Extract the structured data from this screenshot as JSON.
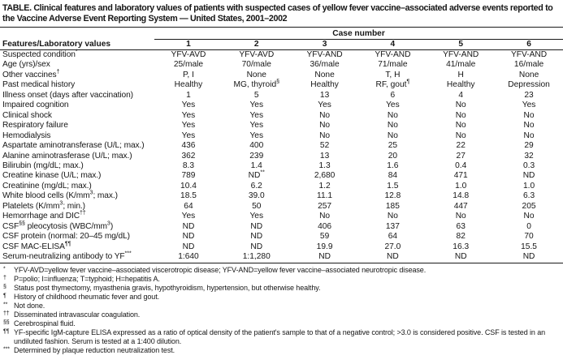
{
  "title": "TABLE. Clinical features and laboratory values of patients with suspected cases of yellow fever vaccine–associated adverse events reported to the Vaccine Adverse Event Reporting System — United States, 2001–2002",
  "table": {
    "case_number_header": "Case number",
    "features_header": "Features/Laboratory values",
    "case_columns": [
      "1",
      "2",
      "3",
      "4",
      "5",
      "6"
    ],
    "rows": [
      {
        "label": [
          {
            "t": "Suspected condition"
          },
          {
            "t": "*",
            "sup": true
          }
        ],
        "cells": [
          "YFV-AVD",
          "YFV-AVD",
          "YFV-AND",
          "YFV-AND",
          "YFV-AND",
          "YFV-AND"
        ]
      },
      {
        "label": "Age (yrs)/sex",
        "cells": [
          "25/male",
          "70/male",
          "36/male",
          "71/male",
          "41/male",
          "16/male"
        ]
      },
      {
        "label": [
          {
            "t": "Other vaccines"
          },
          {
            "t": "†",
            "sup": true
          }
        ],
        "cells": [
          "P, I",
          "None",
          "None",
          "T, H",
          "H",
          "None"
        ]
      },
      {
        "label": "Past medical history",
        "cells": [
          "Healthy",
          [
            {
              "t": "MG, thyroid"
            },
            {
              "t": "§",
              "sup": true
            }
          ],
          "Healthy",
          [
            {
              "t": "RF, gout"
            },
            {
              "t": "¶",
              "sup": true
            }
          ],
          "Healthy",
          "Depression"
        ]
      },
      {
        "label": "Illness onset (days after vaccination)",
        "cells": [
          "1",
          "5",
          "13",
          "6",
          "4",
          "23"
        ]
      },
      {
        "label": "Impaired cognition",
        "cells": [
          "Yes",
          "Yes",
          "Yes",
          "Yes",
          "No",
          "Yes"
        ]
      },
      {
        "label": "Clinical shock",
        "cells": [
          "Yes",
          "Yes",
          "No",
          "No",
          "No",
          "No"
        ]
      },
      {
        "label": "Respiratory failure",
        "cells": [
          "Yes",
          "Yes",
          "No",
          "No",
          "No",
          "No"
        ]
      },
      {
        "label": "Hemodialysis",
        "cells": [
          "Yes",
          "Yes",
          "No",
          "No",
          "No",
          "No"
        ]
      },
      {
        "label": "Aspartate aminotransferase  (U/L; max.)",
        "cells": [
          "436",
          "400",
          "52",
          "25",
          "22",
          "29"
        ]
      },
      {
        "label": "Alanine aminotrasferase  (U/L; max.)",
        "cells": [
          "362",
          "239",
          "13",
          "20",
          "27",
          "32"
        ]
      },
      {
        "label": "Bilirubin (mg/dL; max.)",
        "cells": [
          "8.3",
          "1.4",
          "1.3",
          "1.6",
          "0.4",
          "0.3"
        ]
      },
      {
        "label": "Creatine kinase (U/L; max.)",
        "cells": [
          "789",
          [
            {
              "t": "ND"
            },
            {
              "t": "**",
              "sup": true
            }
          ],
          "2,680",
          "84",
          "471",
          "ND"
        ]
      },
      {
        "label": "Creatinine (mg/dL; max.)",
        "cells": [
          "10.4",
          "6.2",
          "1.2",
          "1.5",
          "1.0",
          "1.0"
        ]
      },
      {
        "label": [
          {
            "t": "White blood cells (K/mm"
          },
          {
            "t": "3",
            "sup": true
          },
          {
            "t": "; max.)"
          }
        ],
        "cells": [
          "18.5",
          "39.0",
          "11.1",
          "12.8",
          "14.8",
          "6.3"
        ]
      },
      {
        "label": [
          {
            "t": "Platelets (K/mm"
          },
          {
            "t": "3",
            "sup": true
          },
          {
            "t": "; min.)"
          }
        ],
        "cells": [
          "64",
          "50",
          "257",
          "185",
          "447",
          "205"
        ]
      },
      {
        "label": [
          {
            "t": "Hemorrhage and DIC"
          },
          {
            "t": "††",
            "sup": true
          }
        ],
        "cells": [
          "Yes",
          "Yes",
          "No",
          "No",
          "No",
          "No"
        ]
      },
      {
        "label": [
          {
            "t": "CSF"
          },
          {
            "t": "§§",
            "sup": true
          },
          {
            "t": " pleocytosis (WBC/mm"
          },
          {
            "t": "3",
            "sup": true
          },
          {
            "t": ")"
          }
        ],
        "cells": [
          "ND",
          "ND",
          "406",
          "137",
          "63",
          "0"
        ]
      },
      {
        "label": "CSF protein (normal: 20–45 mg/dL)",
        "cells": [
          "ND",
          "ND",
          "59",
          "64",
          "82",
          "70"
        ]
      },
      {
        "label": [
          {
            "t": "CSF MAC-ELISA"
          },
          {
            "t": "¶¶",
            "sup": true
          }
        ],
        "cells": [
          "ND",
          "ND",
          "19.9",
          "27.0",
          "16.3",
          "15.5"
        ]
      },
      {
        "label": [
          {
            "t": "Serum-neutralizing antibody to YF"
          },
          {
            "t": "***",
            "sup": true
          }
        ],
        "cells": [
          "1:640",
          "1:1,280",
          "ND",
          "ND",
          "ND",
          "ND"
        ]
      }
    ]
  },
  "footnotes": [
    {
      "marker": "*",
      "text": "YFV-AVD=yellow fever vaccine–associated viscerotropic disease; YFV-AND=yellow fever vaccine–associated neurotropic disease."
    },
    {
      "marker": "†",
      "text": "P=polio; I=influenza; T=typhoid; H=hepatitis A."
    },
    {
      "marker": "§",
      "text": "Status post thymectomy, myasthenia gravis, hypothyroidism, hypertension, but otherwise healthy."
    },
    {
      "marker": "¶",
      "text": "History of childhood rheumatic fever and gout."
    },
    {
      "marker": "**",
      "text": "Not done."
    },
    {
      "marker": "††",
      "text": "Disseminated intravascular coagulation."
    },
    {
      "marker": "§§",
      "text": "Cerebrospinal fluid."
    },
    {
      "marker": "¶¶",
      "text": "YF-specific IgM-capture ELISA expressed as a ratio of optical density of the patient's sample to that of a negative control; >3.0 is considered positive. CSF is tested in an undiluted fashion. Serum is tested at a 1:400 dilution."
    },
    {
      "marker": "***",
      "text": "Determined by plaque reduction neutralization test."
    }
  ]
}
